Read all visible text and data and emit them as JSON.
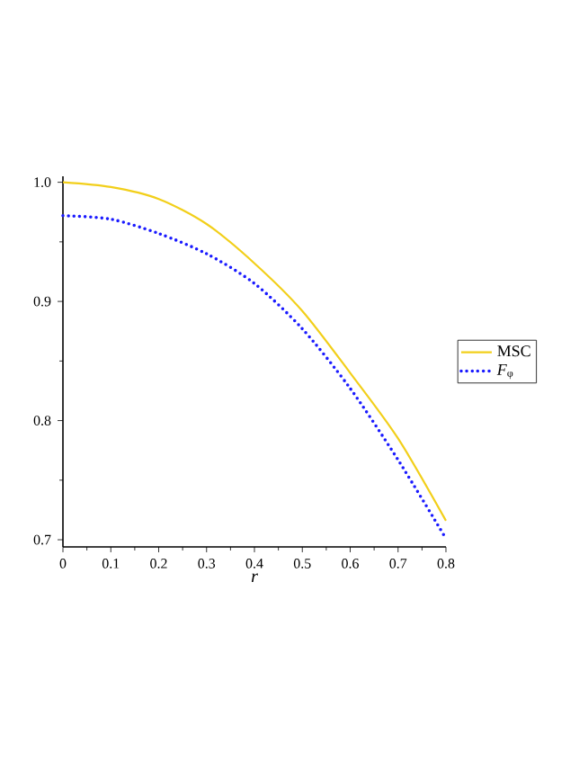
{
  "chart_data": {
    "type": "line",
    "xlabel": "r",
    "x": [
      0,
      0.1,
      0.2,
      0.3,
      0.4,
      0.5,
      0.6,
      0.7,
      0.8
    ],
    "series": [
      {
        "name": "MSC",
        "color": "#f2cf1a",
        "line_style": "solid",
        "values": [
          1.0,
          0.996,
          0.986,
          0.965,
          0.932,
          0.892,
          0.84,
          0.785,
          0.716
        ]
      },
      {
        "name": "*F*$_{φ}$",
        "color": "#1a1aff",
        "line_style": "dotted",
        "values": [
          0.972,
          0.969,
          0.957,
          0.94,
          0.915,
          0.877,
          0.827,
          0.767,
          0.701
        ]
      }
    ],
    "xlim": [
      0,
      0.8
    ],
    "ylim": [
      0.694,
      1.005
    ],
    "xticks": [
      0,
      0.1,
      0.2,
      0.3,
      0.4,
      0.5,
      0.6,
      0.7,
      0.8
    ],
    "yticks": [
      0.7,
      0.8,
      0.9,
      {
        "value": 1.0,
        "label": "1.0"
      }
    ],
    "grid": false,
    "legend": "right",
    "marker": "none"
  }
}
